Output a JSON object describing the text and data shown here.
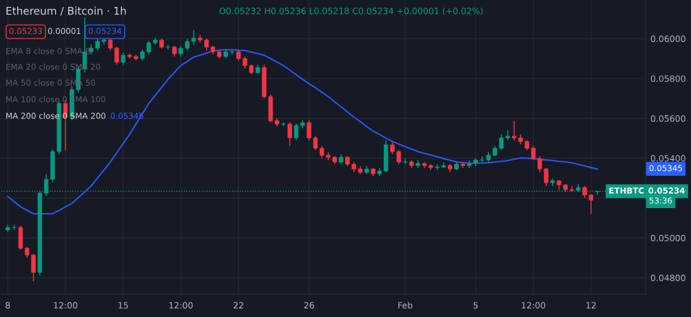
{
  "chart_data": {
    "type": "candlestick",
    "title": "Ethereum / Bitcoin · 1h",
    "subtitle": "O0.05232 H0.05236 L0.05218 C0.05234 +0.00001 (+0.02%)",
    "categories": [
      "8",
      null,
      null,
      null,
      null,
      null,
      null,
      null,
      null,
      "12:00",
      null,
      null,
      null,
      null,
      null,
      null,
      null,
      null,
      "15",
      null,
      null,
      null,
      null,
      null,
      null,
      null,
      null,
      "12:00",
      null,
      null,
      null,
      null,
      null,
      null,
      null,
      null,
      "22",
      null,
      null,
      null,
      null,
      null,
      null,
      null,
      null,
      null,
      null,
      "26",
      null,
      null,
      null,
      null,
      null,
      null,
      null,
      null,
      null,
      null,
      null,
      null,
      null,
      null,
      "Feb",
      null,
      null,
      null,
      null,
      null,
      null,
      null,
      null,
      null,
      null,
      "5",
      null,
      null,
      null,
      null,
      null,
      null,
      null,
      null,
      "12:00",
      null,
      null,
      null,
      null,
      null,
      null,
      null,
      null,
      "12",
      null
    ],
    "ohlc": [
      [
        0.0504,
        0.05065,
        0.0503,
        0.05052
      ],
      [
        0.05052,
        0.05065,
        0.0504,
        0.05052
      ],
      [
        0.05052,
        0.0506,
        0.0494,
        0.04948
      ],
      [
        0.04948,
        0.04955,
        0.049,
        0.04914
      ],
      [
        0.04914,
        0.0492,
        0.04782,
        0.04827
      ],
      [
        0.04827,
        0.05235,
        0.0481,
        0.05225
      ],
      [
        0.05225,
        0.0532,
        0.0521,
        0.05294
      ],
      [
        0.05294,
        0.05445,
        0.0528,
        0.05433
      ],
      [
        0.05433,
        0.0569,
        0.0542,
        0.05675
      ],
      [
        0.05675,
        0.0569,
        0.05439,
        0.05606
      ],
      [
        0.05606,
        0.0576,
        0.0559,
        0.05744
      ],
      [
        0.05744,
        0.0586,
        0.0573,
        0.05848
      ],
      [
        0.05848,
        0.06107,
        0.0583,
        0.05934
      ],
      [
        0.05934,
        0.0597,
        0.0592,
        0.05952
      ],
      [
        0.05952,
        0.06,
        0.0594,
        0.05986
      ],
      [
        0.05986,
        0.06005,
        0.0597,
        0.05993
      ],
      [
        0.05993,
        0.06,
        0.0594,
        0.05952
      ],
      [
        0.05952,
        0.0596,
        0.0587,
        0.05882
      ],
      [
        0.05882,
        0.0593,
        0.0587,
        0.05917
      ],
      [
        0.05917,
        0.05925,
        0.059,
        0.0591
      ],
      [
        0.0591,
        0.0592,
        0.0589,
        0.059
      ],
      [
        0.059,
        0.05945,
        0.0589,
        0.05934
      ],
      [
        0.05934,
        0.0599,
        0.0592,
        0.05979
      ],
      [
        0.05979,
        0.06005,
        0.0597,
        0.05993
      ],
      [
        0.05993,
        0.06,
        0.0595,
        0.05958
      ],
      [
        0.05958,
        0.0597,
        0.05945,
        0.05958
      ],
      [
        0.05958,
        0.05965,
        0.0591,
        0.05924
      ],
      [
        0.05924,
        0.05965,
        0.0591,
        0.05952
      ],
      [
        0.05952,
        0.06,
        0.0594,
        0.05986
      ],
      [
        0.05986,
        0.06043,
        0.0597,
        0.06003
      ],
      [
        0.06003,
        0.0602,
        0.0598,
        0.05993
      ],
      [
        0.05993,
        0.06,
        0.0594,
        0.05958
      ],
      [
        0.05958,
        0.05965,
        0.0592,
        0.05934
      ],
      [
        0.05934,
        0.0594,
        0.059,
        0.0591
      ],
      [
        0.0591,
        0.05945,
        0.059,
        0.05934
      ],
      [
        0.05934,
        0.05945,
        0.0592,
        0.05934
      ],
      [
        0.05934,
        0.0594,
        0.0589,
        0.059
      ],
      [
        0.059,
        0.0591,
        0.0585,
        0.05865
      ],
      [
        0.05865,
        0.0587,
        0.0582,
        0.0583
      ],
      [
        0.0583,
        0.0587,
        0.0582,
        0.05855
      ],
      [
        0.05855,
        0.0587,
        0.057,
        0.05709
      ],
      [
        0.05709,
        0.0572,
        0.0558,
        0.05588
      ],
      [
        0.05588,
        0.056,
        0.0556,
        0.05571
      ],
      [
        0.05571,
        0.0558,
        0.0556,
        0.05571
      ],
      [
        0.05571,
        0.0558,
        0.0546,
        0.05502
      ],
      [
        0.05502,
        0.05575,
        0.0549,
        0.05564
      ],
      [
        0.05564,
        0.0559,
        0.0555,
        0.05578
      ],
      [
        0.05578,
        0.0559,
        0.0549,
        0.05502
      ],
      [
        0.05502,
        0.0551,
        0.0544,
        0.0545
      ],
      [
        0.0545,
        0.0546,
        0.054,
        0.05415
      ],
      [
        0.05415,
        0.0543,
        0.0539,
        0.05405
      ],
      [
        0.05405,
        0.0541,
        0.0537,
        0.05381
      ],
      [
        0.05381,
        0.0542,
        0.0537,
        0.05405
      ],
      [
        0.05405,
        0.0541,
        0.0536,
        0.0537
      ],
      [
        0.0537,
        0.0538,
        0.0533,
        0.05346
      ],
      [
        0.05346,
        0.0536,
        0.0532,
        0.05329
      ],
      [
        0.05329,
        0.0536,
        0.0532,
        0.05346
      ],
      [
        0.05346,
        0.0535,
        0.0531,
        0.05322
      ],
      [
        0.05322,
        0.0535,
        0.0531,
        0.05336
      ],
      [
        0.05336,
        0.0549,
        0.0533,
        0.05467
      ],
      [
        0.05467,
        0.0548,
        0.0542,
        0.05433
      ],
      [
        0.05433,
        0.0544,
        0.0537,
        0.05381
      ],
      [
        0.05381,
        0.054,
        0.0537,
        0.05381
      ],
      [
        0.05381,
        0.0539,
        0.0535,
        0.05363
      ],
      [
        0.05363,
        0.0539,
        0.0535,
        0.05374
      ],
      [
        0.05374,
        0.0538,
        0.0535,
        0.05363
      ],
      [
        0.05363,
        0.0537,
        0.0534,
        0.05353
      ],
      [
        0.05353,
        0.0537,
        0.0534,
        0.05356
      ],
      [
        0.05356,
        0.0538,
        0.0535,
        0.05363
      ],
      [
        0.05363,
        0.0537,
        0.0533,
        0.05346
      ],
      [
        0.05346,
        0.0538,
        0.0534,
        0.0537
      ],
      [
        0.0537,
        0.0538,
        0.0535,
        0.05363
      ],
      [
        0.05363,
        0.0539,
        0.0535,
        0.05374
      ],
      [
        0.05374,
        0.054,
        0.0536,
        0.05391
      ],
      [
        0.05391,
        0.0541,
        0.0538,
        0.05391
      ],
      [
        0.05391,
        0.0543,
        0.0538,
        0.05415
      ],
      [
        0.05415,
        0.0546,
        0.0541,
        0.0545
      ],
      [
        0.0545,
        0.0552,
        0.0544,
        0.05502
      ],
      [
        0.05502,
        0.0554,
        0.0549,
        0.0551
      ],
      [
        0.0551,
        0.05588,
        0.0549,
        0.05502
      ],
      [
        0.05502,
        0.0552,
        0.0547,
        0.05484
      ],
      [
        0.05484,
        0.0549,
        0.0544,
        0.0545
      ],
      [
        0.0545,
        0.0546,
        0.0539,
        0.05398
      ],
      [
        0.05398,
        0.0541,
        0.0533,
        0.05346
      ],
      [
        0.05346,
        0.0535,
        0.0526,
        0.05277
      ],
      [
        0.05277,
        0.053,
        0.0526,
        0.05287
      ],
      [
        0.05287,
        0.0529,
        0.0524,
        0.05266
      ],
      [
        0.05266,
        0.0527,
        0.0523,
        0.05242
      ],
      [
        0.05242,
        0.0526,
        0.0523,
        0.05239
      ],
      [
        0.05239,
        0.0527,
        0.0523,
        0.05253
      ],
      [
        0.05253,
        0.0526,
        0.052,
        0.05215
      ],
      [
        0.05215,
        0.0522,
        0.05121,
        0.0519
      ],
      [
        0.05232,
        0.05236,
        0.05218,
        0.05234
      ]
    ],
    "series": [
      {
        "type": "line",
        "color": "#2f54eb",
        "values": [
          0.05208,
          0.05182,
          0.05156,
          0.05138,
          0.05121,
          0.05121,
          0.05121,
          0.05121,
          0.05138,
          0.05156,
          0.05173,
          0.05202,
          0.05231,
          0.0526,
          0.053,
          0.0534,
          0.05381,
          0.05427,
          0.05473,
          0.05519,
          0.05571,
          0.05623,
          0.05675,
          0.05715,
          0.05756,
          0.05796,
          0.05831,
          0.05865,
          0.05886,
          0.05907,
          0.05917,
          0.05928,
          0.05938,
          0.05942,
          0.05945,
          0.05944,
          0.05942,
          0.05941,
          0.05933,
          0.05925,
          0.05917,
          0.059,
          0.05882,
          0.05865,
          0.05842,
          0.05819,
          0.05796,
          0.05774,
          0.05753,
          0.05731,
          0.05709,
          0.05683,
          0.05658,
          0.05632,
          0.05606,
          0.05583,
          0.05559,
          0.05536,
          0.05519,
          0.05501,
          0.05484,
          0.05471,
          0.05458,
          0.05446,
          0.05433,
          0.05424,
          0.05416,
          0.05407,
          0.05398,
          0.0539,
          0.05381,
          0.05378,
          0.05374,
          0.05375,
          0.05376,
          0.05377,
          0.05381,
          0.05384,
          0.05388,
          0.05395,
          0.05401,
          0.054,
          0.05398,
          0.05395,
          0.05391,
          0.05388,
          0.05384,
          0.05381,
          0.05377,
          0.05369,
          0.05361,
          0.05353,
          0.05345
        ]
      }
    ],
    "ylim": [
      0.04717,
      0.06194
    ],
    "yticks": [
      {
        "value": 0.048,
        "label": "0.04800"
      },
      {
        "value": 0.05,
        "label": "0.05000"
      },
      {
        "value": 0.052,
        "label": null
      },
      {
        "value": 0.054,
        "label": "0.05400"
      },
      {
        "value": 0.056,
        "label": "0.05600"
      },
      {
        "value": 0.058,
        "label": "0.05800"
      },
      {
        "value": 0.06,
        "label": "0.06000"
      }
    ],
    "grid": true,
    "ref_lines": [
      {
        "axis": "y",
        "value": 0.05234,
        "label": "ETHBTC",
        "color": "#089981",
        "line_style": "dotted"
      }
    ],
    "annotations": [
      "0.05233",
      "0.00001",
      "0.05234",
      "EMA 8 close 0 SMA 8",
      "EMA 20 close 0 SMA 20",
      "MA 50 close 0 SMA 50",
      "MA 100 close 0 SMA 100",
      "MA 200 close 0 SMA 200",
      "0.05345",
      "0.05345",
      "53:36"
    ]
  }
}
